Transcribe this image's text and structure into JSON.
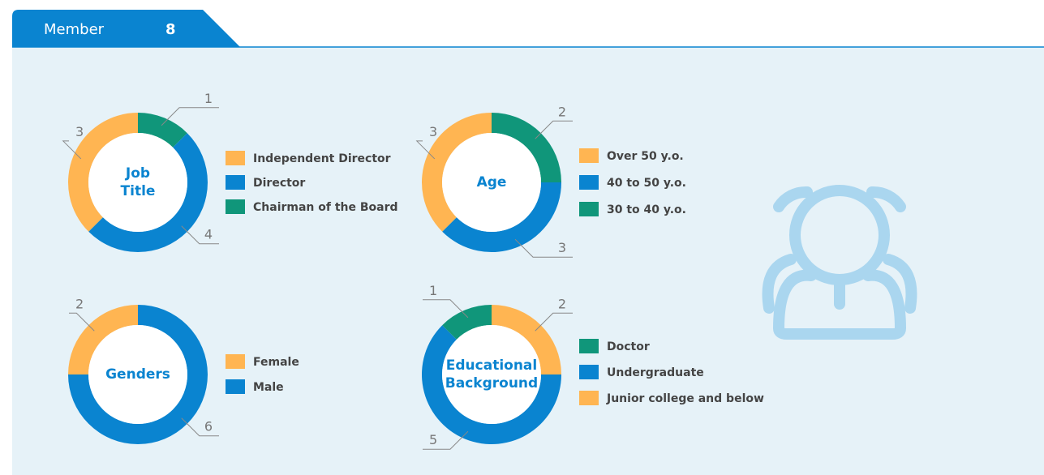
{
  "header": {
    "title": "Member",
    "count": 8
  },
  "chart_data": [
    {
      "type": "donut",
      "title": "Job Title",
      "categories": [
        "Independent Director",
        "Director",
        "Chairman of the Board"
      ],
      "values": [
        3,
        4,
        1
      ],
      "colors": [
        "#ffb552",
        "#0a84d0",
        "#10967a"
      ]
    },
    {
      "type": "donut",
      "title": "Age",
      "categories": [
        "Over 50 y.o.",
        "40 to 50 y.o.",
        "30 to 40 y.o."
      ],
      "values": [
        3,
        3,
        2
      ],
      "colors": [
        "#ffb552",
        "#0a84d0",
        "#10967a"
      ]
    },
    {
      "type": "donut",
      "title": "Genders",
      "categories": [
        "Female",
        "Male"
      ],
      "values": [
        2,
        6
      ],
      "colors": [
        "#ffb552",
        "#0a84d0"
      ]
    },
    {
      "type": "donut",
      "title": "Educational Background",
      "categories": [
        "Doctor",
        "Undergraduate",
        "Junior college and below"
      ],
      "values": [
        1,
        5,
        2
      ],
      "colors": [
        "#10967a",
        "#0a84d0",
        "#ffb552"
      ]
    }
  ]
}
